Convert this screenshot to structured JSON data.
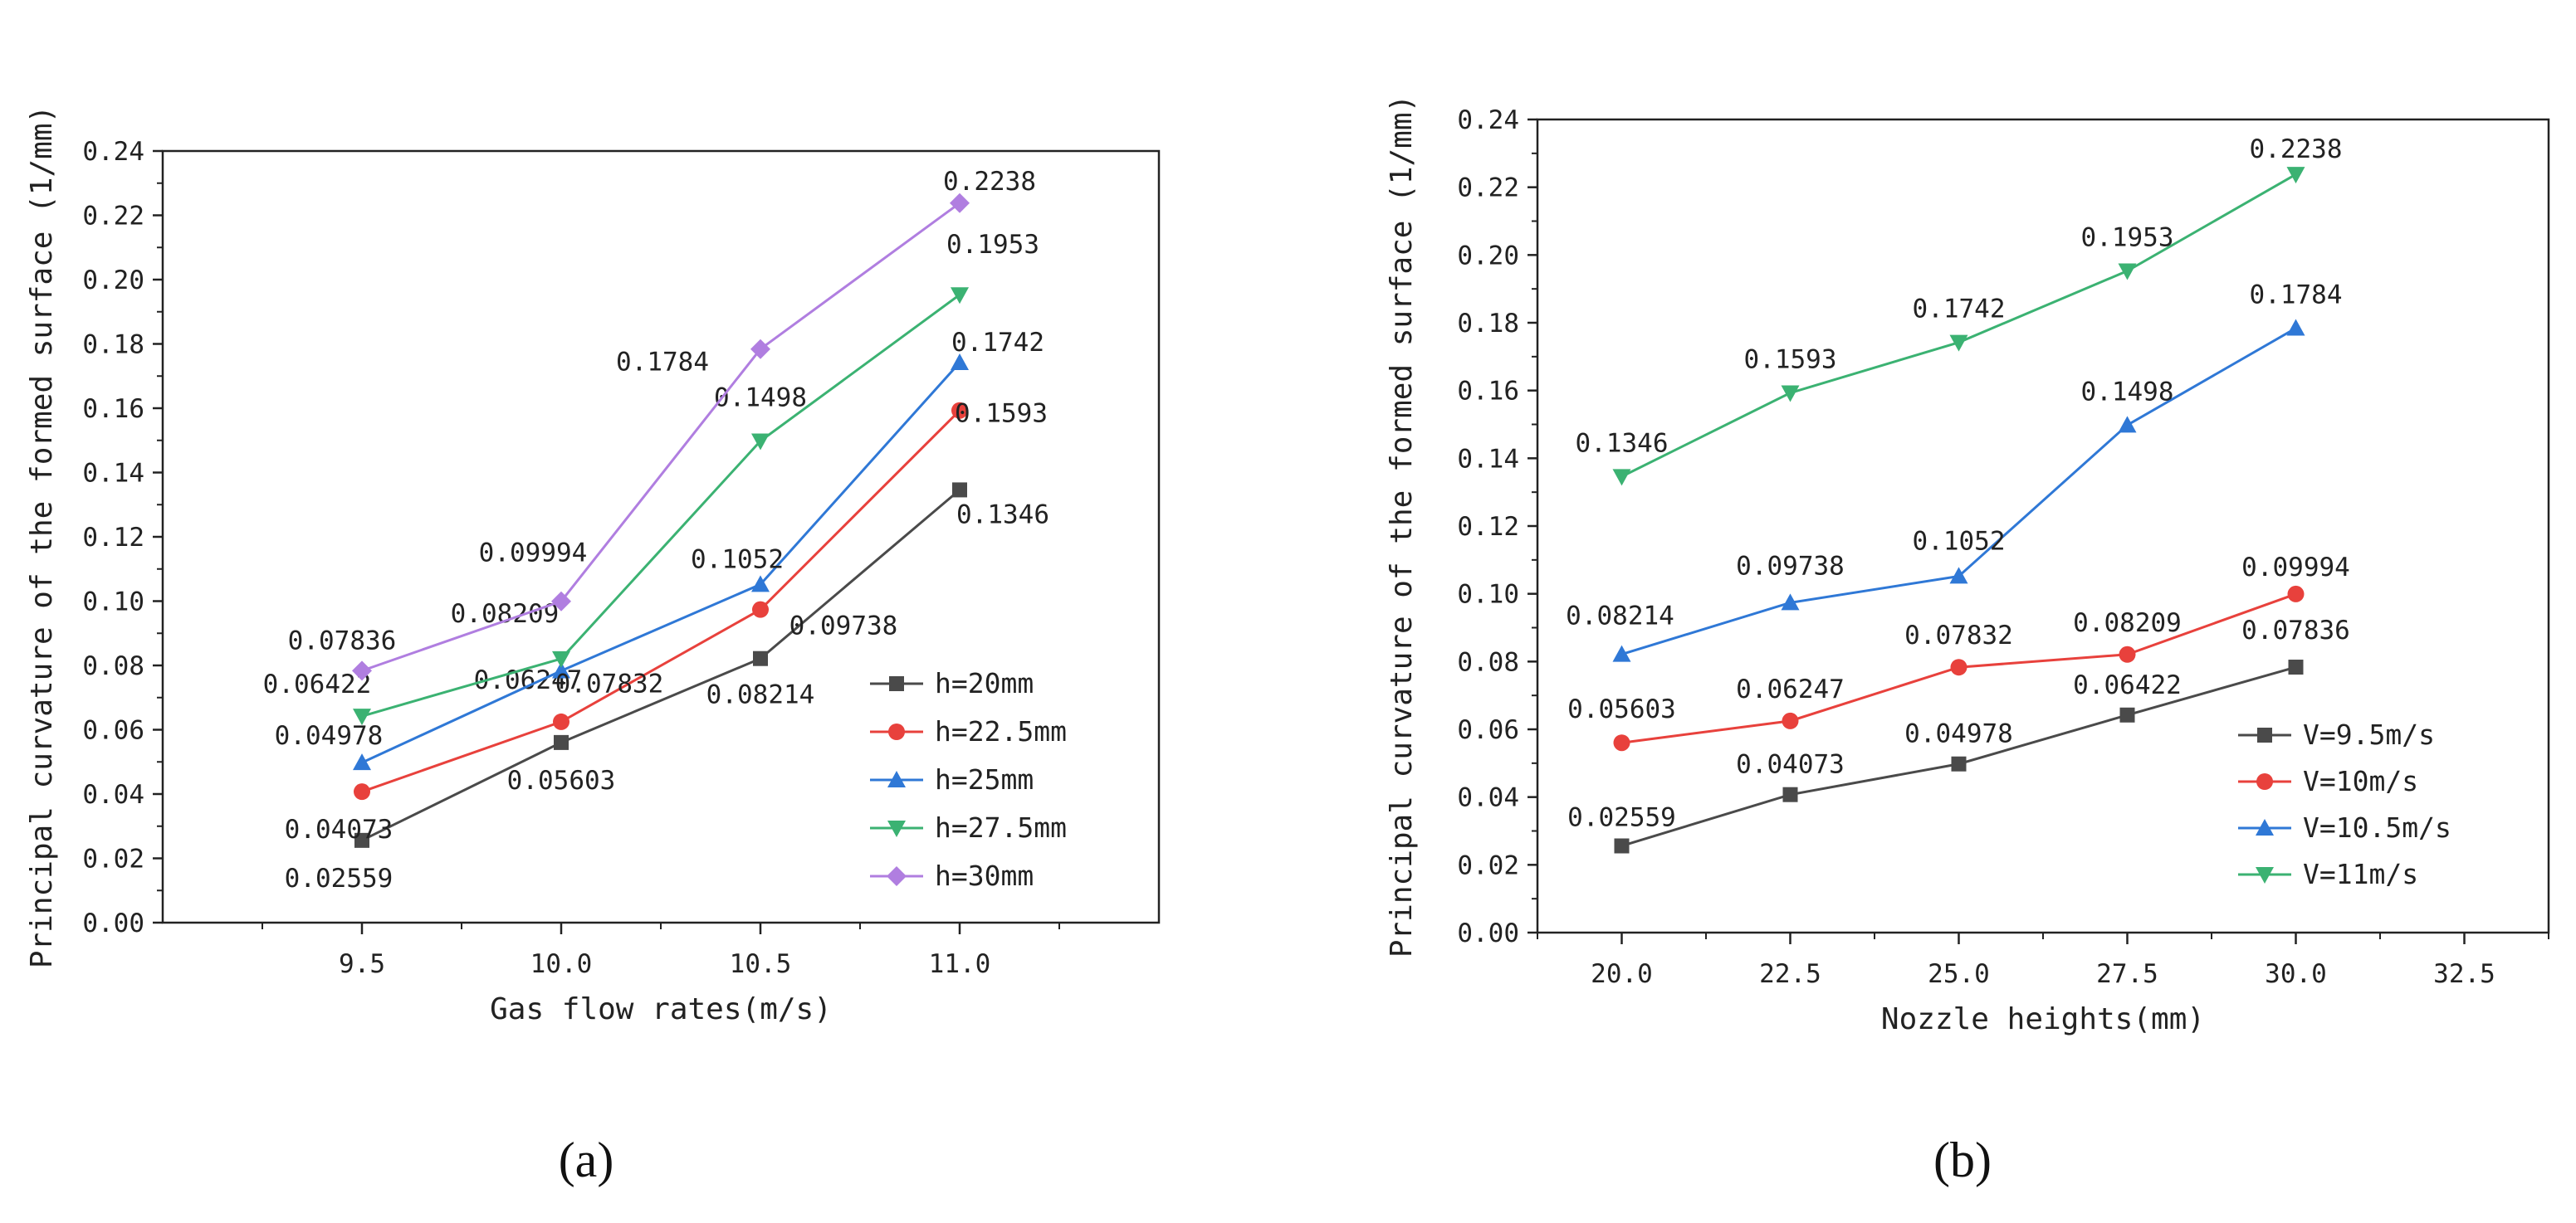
{
  "chart_data": [
    {
      "type": "line",
      "panel_label": "(a)",
      "xlabel": "Gas flow rates(m/s)",
      "ylabel": "Principal curvature of the formed surface (1/mm)",
      "xlim": [
        9.0,
        11.5
      ],
      "ylim": [
        0.0,
        0.24
      ],
      "xticks": [
        9.5,
        10.0,
        10.5,
        11.0
      ],
      "xtick_labels": [
        "9.5",
        "10.0",
        "10.5",
        "11.0"
      ],
      "ytick_labels": [
        "0.00",
        "0.02",
        "0.04",
        "0.06",
        "0.08",
        "0.10",
        "0.12",
        "0.14",
        "0.16",
        "0.18",
        "0.20",
        "0.22",
        "0.24"
      ],
      "x": [
        9.5,
        10.0,
        10.5,
        11.0
      ],
      "grid": false,
      "legend_position": "bottom-right",
      "series": [
        {
          "name": "h=20mm",
          "color": "#4a4a4a",
          "marker": "square",
          "values": [
            0.02559,
            0.05603,
            0.08214,
            0.1346
          ],
          "labels": [
            "0.02559",
            "0.05603",
            "0.08214",
            "0.1346"
          ]
        },
        {
          "name": "h=22.5mm",
          "color": "#e8413c",
          "marker": "circle",
          "values": [
            0.04073,
            0.06247,
            0.09738,
            0.1593
          ],
          "labels": [
            "0.04073",
            "0.06247",
            "0.09738",
            "0.1593"
          ]
        },
        {
          "name": "h=25mm",
          "color": "#2f78d6",
          "marker": "triangle-up",
          "values": [
            0.04978,
            0.07832,
            0.1052,
            0.1742
          ],
          "labels": [
            "0.04978",
            "0.07832",
            "0.1052",
            "0.1742"
          ]
        },
        {
          "name": "h=27.5mm",
          "color": "#3bb272",
          "marker": "triangle-down",
          "values": [
            0.06422,
            0.08209,
            0.1498,
            0.1953
          ],
          "labels": [
            "0.06422",
            "0.08209",
            "0.1498",
            "0.1953"
          ]
        },
        {
          "name": "h=30mm",
          "color": "#b07ee0",
          "marker": "diamond",
          "values": [
            0.07836,
            0.09994,
            0.1784,
            0.2238
          ],
          "labels": [
            "0.07836",
            "0.09994",
            "0.1784",
            "0.2238"
          ]
        }
      ]
    },
    {
      "type": "line",
      "panel_label": "(b)",
      "xlabel": "Nozzle heights(mm)",
      "ylabel": "Principal curvature of the formed surface (1/mm)",
      "xlim": [
        18.75,
        33.75
      ],
      "ylim": [
        0.0,
        0.24
      ],
      "xticks": [
        20.0,
        22.5,
        25.0,
        27.5,
        30.0,
        32.5
      ],
      "xtick_labels": [
        "20.0",
        "22.5",
        "25.0",
        "27.5",
        "30.0",
        "32.5"
      ],
      "ytick_labels": [
        "0.00",
        "0.02",
        "0.04",
        "0.06",
        "0.08",
        "0.10",
        "0.12",
        "0.14",
        "0.16",
        "0.18",
        "0.20",
        "0.22",
        "0.24"
      ],
      "x": [
        20.0,
        22.5,
        25.0,
        27.5,
        30.0
      ],
      "grid": false,
      "legend_position": "bottom-right",
      "series": [
        {
          "name": "V=9.5m/s",
          "color": "#4a4a4a",
          "marker": "square",
          "values": [
            0.02559,
            0.04073,
            0.04978,
            0.06422,
            0.07836
          ],
          "labels": [
            "0.02559",
            "0.04073",
            "0.04978",
            "0.06422",
            "0.07836"
          ]
        },
        {
          "name": "V=10m/s",
          "color": "#e8413c",
          "marker": "circle",
          "values": [
            0.05603,
            0.06247,
            0.07832,
            0.08209,
            0.09994
          ],
          "labels": [
            "0.05603",
            "0.06247",
            "0.07832",
            "0.08209",
            "0.09994"
          ]
        },
        {
          "name": "V=10.5m/s",
          "color": "#2f78d6",
          "marker": "triangle-up",
          "values": [
            0.08214,
            0.09738,
            0.1052,
            0.1498,
            0.1784
          ],
          "labels": [
            "0.08214",
            "0.09738",
            "0.1052",
            "0.1498",
            "0.1784"
          ]
        },
        {
          "name": "V=11m/s",
          "color": "#3bb272",
          "marker": "triangle-down",
          "values": [
            0.1346,
            0.1593,
            0.1742,
            0.1953,
            0.2238
          ],
          "labels": [
            "0.1346",
            "0.1593",
            "0.1742",
            "0.1953",
            "0.2238"
          ]
        }
      ]
    }
  ]
}
